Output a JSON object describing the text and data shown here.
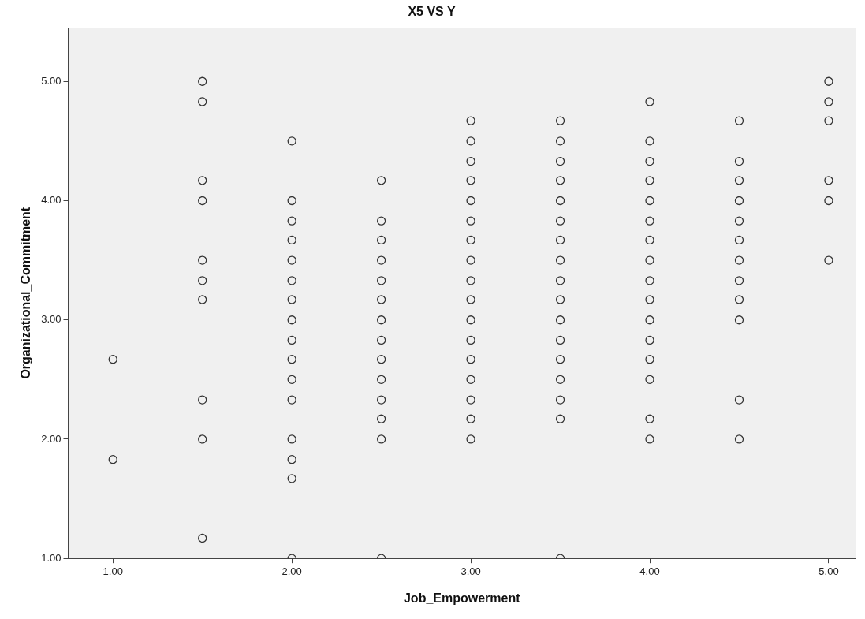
{
  "chart_data": {
    "type": "scatter",
    "title": "X5 VS Y",
    "xlabel": "Job_Empowerment",
    "ylabel": "Organizational_Commitment",
    "xlim": [
      0.75,
      5.15
    ],
    "ylim": [
      1,
      5.45
    ],
    "xticks": [
      {
        "value": 1,
        "label": "1.00"
      },
      {
        "value": 2,
        "label": "2.00"
      },
      {
        "value": 3,
        "label": "3.00"
      },
      {
        "value": 4,
        "label": "4.00"
      },
      {
        "value": 5,
        "label": "5.00"
      }
    ],
    "yticks": [
      {
        "value": 1,
        "label": "1.00"
      },
      {
        "value": 2,
        "label": "2.00"
      },
      {
        "value": 3,
        "label": "3.00"
      },
      {
        "value": 4,
        "label": "4.00"
      },
      {
        "value": 5,
        "label": "5.00"
      }
    ],
    "grid": false,
    "legend": false,
    "marker": "circle",
    "series": [
      {
        "color": "#333333",
        "x": [
          1,
          1,
          1.5,
          1.5,
          1.5,
          1.5,
          1.5,
          1.5,
          1.5,
          1.5,
          1.5,
          1.5,
          2,
          2,
          2,
          2,
          2,
          2,
          2,
          2,
          2,
          2,
          2,
          2,
          2,
          2,
          2,
          2,
          2.5,
          2.5,
          2.5,
          2.5,
          2.5,
          2.5,
          2.5,
          2.5,
          2.5,
          2.5,
          2.5,
          2.5,
          2.5,
          2.5,
          3,
          3,
          3,
          3,
          3,
          3,
          3,
          3,
          3,
          3,
          3,
          3,
          3,
          3,
          3,
          3,
          3,
          3.5,
          3.5,
          3.5,
          3.5,
          3.5,
          3.5,
          3.5,
          3.5,
          3.5,
          3.5,
          3.5,
          3.5,
          3.5,
          3.5,
          3.5,
          3.5,
          3.5,
          4,
          4,
          4,
          4,
          4,
          4,
          4,
          4,
          4,
          4,
          4,
          4,
          4,
          4,
          4,
          4,
          4.5,
          4.5,
          4.5,
          4.5,
          4.5,
          4.5,
          4.5,
          4.5,
          4.5,
          4.5,
          4.5,
          4.5,
          5,
          5,
          5,
          5,
          5,
          5
        ],
        "values": [
          2.67,
          1.83,
          5,
          4.83,
          4.17,
          4,
          3.5,
          3.33,
          3.17,
          2.33,
          2,
          1.17,
          4.5,
          4,
          3.83,
          3.67,
          3.5,
          3.33,
          3.17,
          3,
          2.83,
          2.67,
          2.5,
          2.33,
          2,
          1.83,
          1.67,
          1,
          4.17,
          3.83,
          3.67,
          3.5,
          3.33,
          3.17,
          3,
          2.83,
          2.67,
          2.5,
          2.33,
          2.17,
          2,
          1,
          4.67,
          4.5,
          4.33,
          4.17,
          4,
          3.83,
          3.67,
          3.5,
          3.33,
          3.17,
          3,
          2.83,
          2.67,
          2.5,
          2.33,
          2.17,
          2,
          4.67,
          4.5,
          4.33,
          4.17,
          4,
          3.83,
          3.67,
          3.5,
          3.33,
          3.17,
          3,
          2.83,
          2.67,
          2.5,
          2.33,
          2.17,
          1,
          4.83,
          4.5,
          4.33,
          4.17,
          4,
          3.83,
          3.67,
          3.5,
          3.33,
          3.17,
          3,
          2.83,
          2.67,
          2.5,
          2.17,
          2,
          4.67,
          4.33,
          4.17,
          4,
          3.83,
          3.67,
          3.5,
          3.33,
          3.17,
          3,
          2.33,
          2,
          5,
          4.83,
          4.67,
          4.17,
          4,
          3.5
        ]
      }
    ]
  }
}
